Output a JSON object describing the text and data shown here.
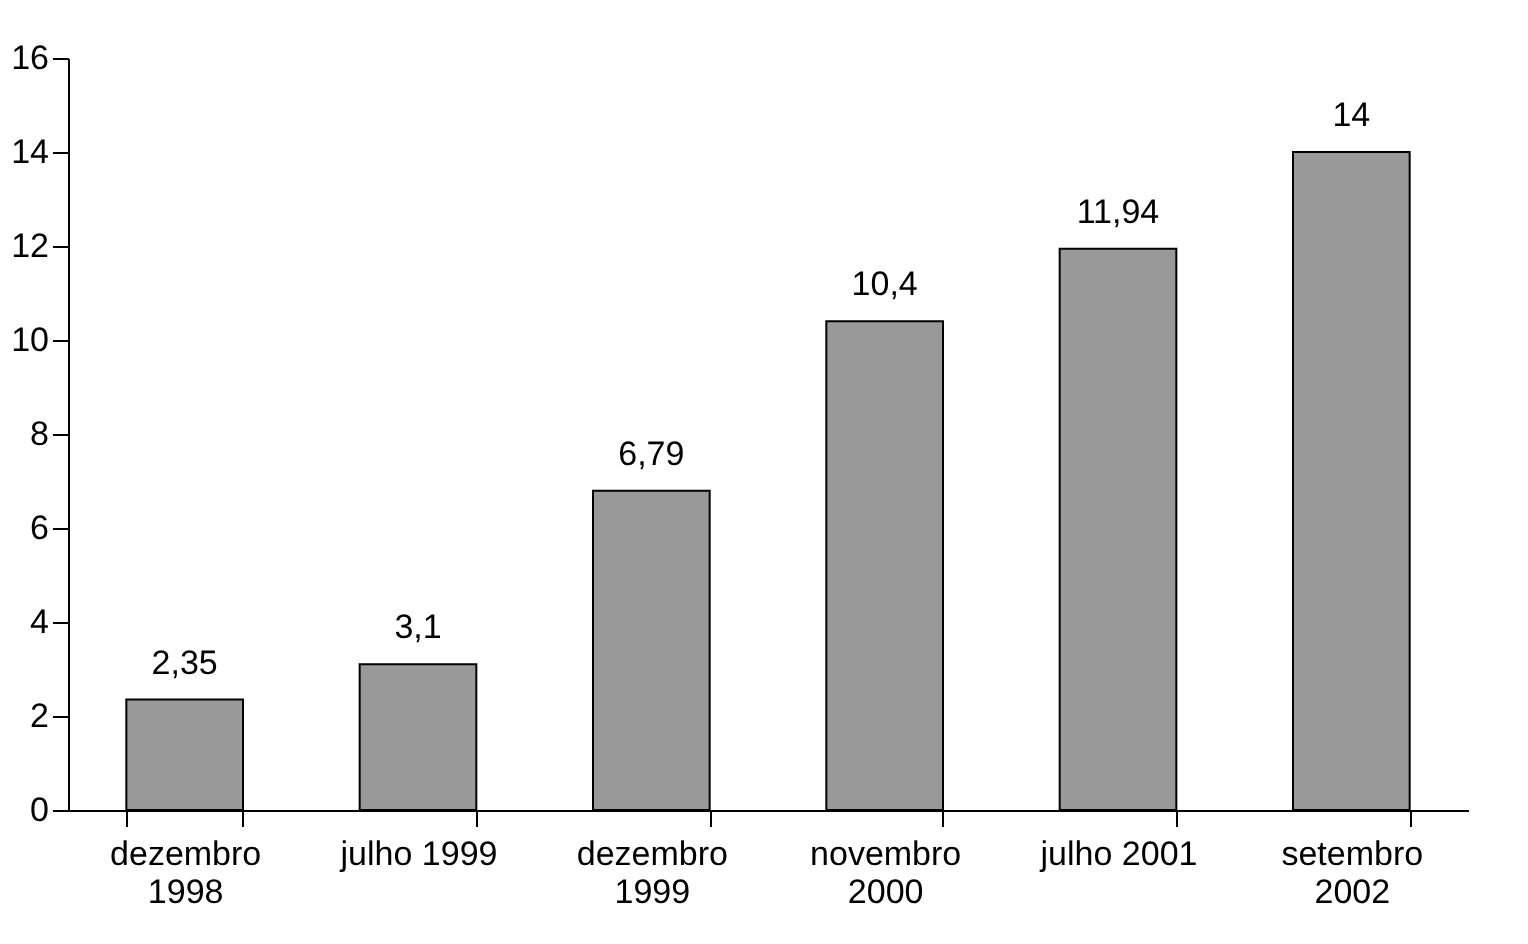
{
  "chart_data": {
    "type": "bar",
    "categories": [
      "dezembro 1998",
      "julho 1999",
      "dezembro 1999",
      "novembro 2000",
      "julho 2001",
      "setembro 2002"
    ],
    "values": [
      2.35,
      3.1,
      6.79,
      10.4,
      11.94,
      14
    ],
    "value_labels": [
      "2,35",
      "3,1",
      "6,79",
      "10,4",
      "11,94",
      "14"
    ],
    "color": "#999999",
    "ylim": [
      0,
      16
    ],
    "yticks": [
      0,
      2,
      4,
      6,
      8,
      10,
      12,
      14,
      16
    ],
    "grid": false
  }
}
